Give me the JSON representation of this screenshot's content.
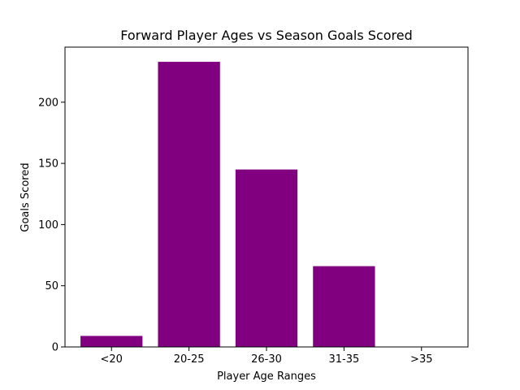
{
  "chart_data": {
    "type": "bar",
    "title": "Forward Player Ages vs Season Goals Scored",
    "xlabel": "Player Age Ranges",
    "ylabel": "Goals Scored",
    "categories": [
      "<20",
      "20-25",
      "26-30",
      "31-35",
      ">35"
    ],
    "values": [
      9,
      233,
      145,
      66,
      0
    ],
    "ylim": [
      0,
      245
    ],
    "yticks": [
      0,
      50,
      100,
      150,
      200
    ],
    "grid": false,
    "bar_color": "#800080"
  }
}
